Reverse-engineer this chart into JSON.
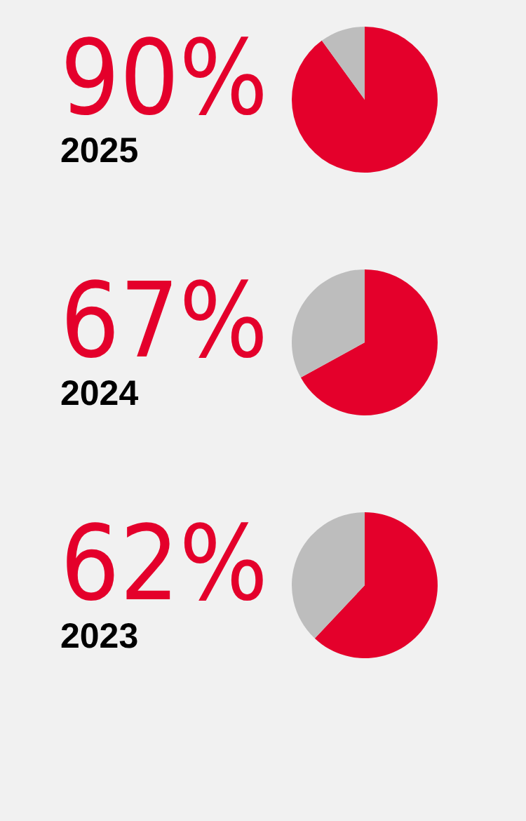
{
  "chart_data": [
    {
      "type": "pie",
      "title": "90%",
      "subtitle": "2025",
      "categories": [
        null,
        null
      ],
      "values": [
        90,
        10
      ],
      "colors": [
        "#e4002b",
        "#bdbdbd"
      ]
    },
    {
      "type": "pie",
      "title": "67%",
      "subtitle": "2024",
      "categories": [
        null,
        null
      ],
      "values": [
        67,
        33
      ],
      "colors": [
        "#e4002b",
        "#bdbdbd"
      ]
    },
    {
      "type": "pie",
      "title": "62%",
      "subtitle": "2023",
      "categories": [
        null,
        null
      ],
      "values": [
        62,
        38
      ],
      "colors": [
        "#e4002b",
        "#bdbdbd"
      ]
    }
  ]
}
